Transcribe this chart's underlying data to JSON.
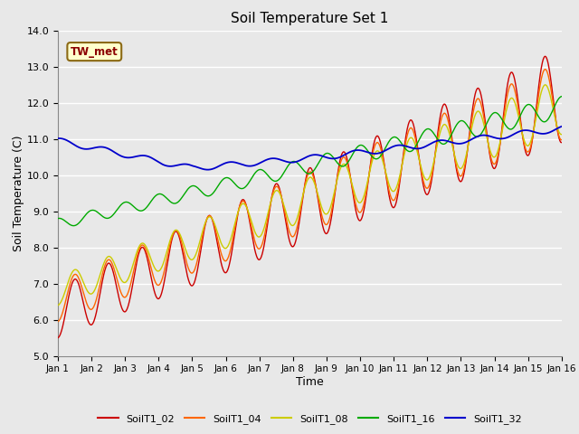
{
  "title": "Soil Temperature Set 1",
  "xlabel": "Time",
  "ylabel": "Soil Temperature (C)",
  "ylim": [
    5.0,
    14.0
  ],
  "yticks": [
    5.0,
    6.0,
    7.0,
    8.0,
    9.0,
    10.0,
    11.0,
    12.0,
    13.0,
    14.0
  ],
  "xtick_labels": [
    "Jan 1",
    "Jan 2",
    "Jan 3",
    "Jan 4",
    "Jan 5",
    "Jan 6",
    "Jan 7",
    "Jan 8",
    "Jan 9",
    "Jan 10",
    "Jan 11",
    "Jan 12",
    "Jan 13",
    "Jan 14",
    "Jan 15",
    "Jan 16"
  ],
  "series_colors": {
    "SoilT1_02": "#cc0000",
    "SoilT1_04": "#ff6600",
    "SoilT1_08": "#cccc00",
    "SoilT1_16": "#00aa00",
    "SoilT1_32": "#0000cc"
  },
  "legend_label": "TW_met",
  "background_color": "#e8e8e8",
  "plot_bg_color": "#e8e8e8",
  "grid_color": "#ffffff",
  "figsize": [
    6.4,
    4.8
  ],
  "dpi": 100
}
